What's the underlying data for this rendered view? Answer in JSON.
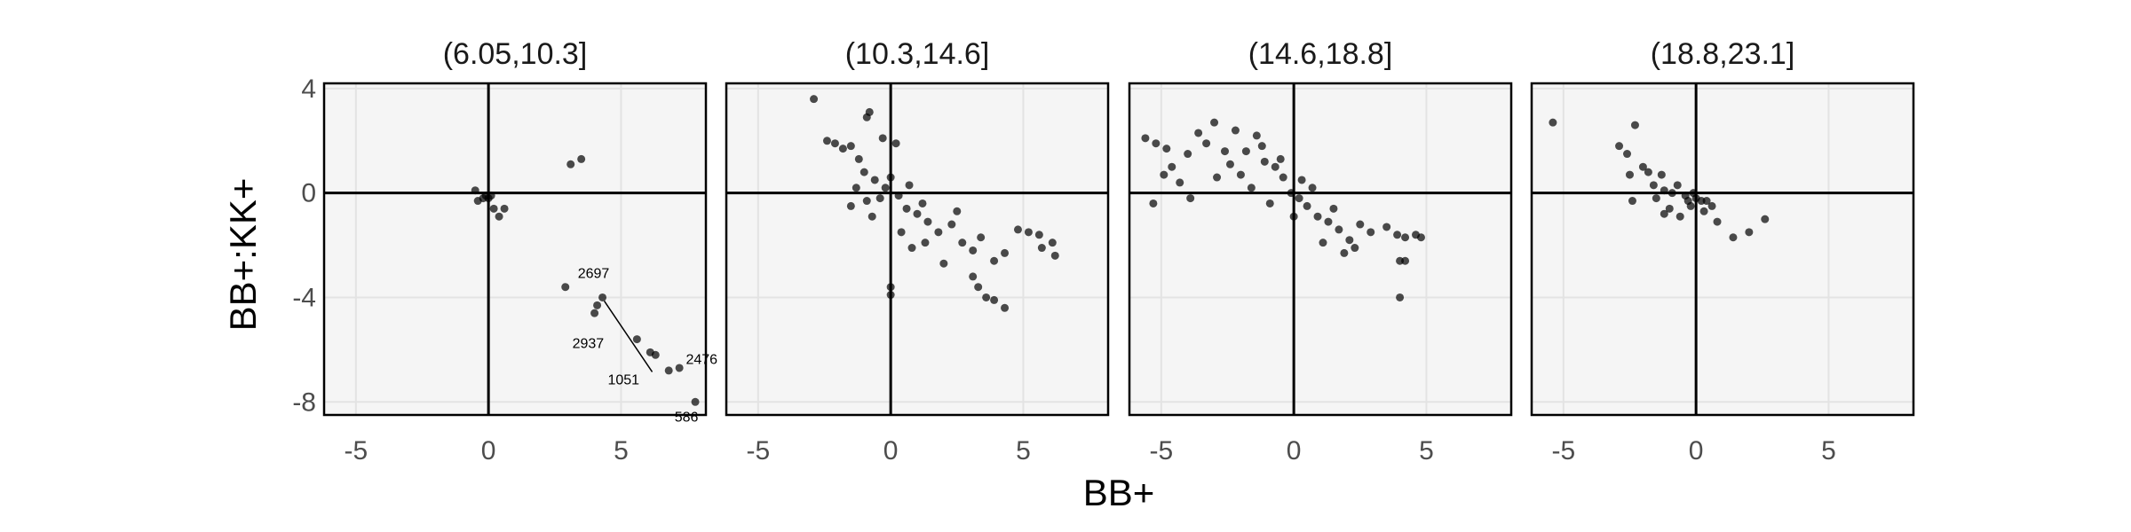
{
  "chart_data": {
    "type": "scatter",
    "xlabel": "BB+",
    "ylabel": "BB+:KK+",
    "xlim": [
      -6.2,
      8.2
    ],
    "ylim": [
      -8.5,
      4.2
    ],
    "x_ticks": [
      -5,
      0,
      5
    ],
    "x_tick_labels": [
      "-5",
      "0",
      "5"
    ],
    "y_ticks": [
      4,
      0,
      -4,
      -8
    ],
    "y_tick_labels": [
      "4",
      "0",
      "-4",
      "-8"
    ],
    "grid": true,
    "reference_lines": {
      "x": 0,
      "y": 0
    },
    "facets": [
      {
        "title": "(6.05,10.3]",
        "points": [
          [
            -0.5,
            0.1
          ],
          [
            -0.4,
            -0.3
          ],
          [
            -0.2,
            -0.2
          ],
          [
            -0.1,
            -0.1
          ],
          [
            0,
            -0.2
          ],
          [
            0.1,
            -0.1
          ],
          [
            0.2,
            -0.6
          ],
          [
            0.4,
            -0.9
          ],
          [
            0.6,
            -0.6
          ],
          [
            3.1,
            1.1
          ],
          [
            3.5,
            1.3
          ],
          [
            2.9,
            -3.6
          ],
          [
            4.1,
            -4.3
          ],
          [
            4.3,
            -4.0
          ],
          [
            4.0,
            -4.6
          ],
          [
            5.6,
            -5.6
          ],
          [
            6.1,
            -6.1
          ],
          [
            6.3,
            -6.2
          ],
          [
            6.8,
            -6.8
          ],
          [
            7.2,
            -6.7
          ],
          [
            7.8,
            -8.0
          ]
        ],
        "labels": [
          {
            "text": "2697",
            "x": 4.3,
            "y": -4.0
          },
          {
            "text": "2937",
            "x": 5.6,
            "y": -5.6
          },
          {
            "text": "2476",
            "x": 6.3,
            "y": -6.2
          },
          {
            "text": "1051",
            "x": 6.1,
            "y": -6.1
          },
          {
            "text": "586",
            "x": 7.8,
            "y": -8.0
          }
        ]
      },
      {
        "title": "(10.3,14.6]",
        "points": [
          [
            -2.9,
            3.6
          ],
          [
            -2.4,
            2.0
          ],
          [
            -2.1,
            1.9
          ],
          [
            -1.8,
            1.7
          ],
          [
            -1.5,
            1.8
          ],
          [
            -1.2,
            1.3
          ],
          [
            -0.9,
            2.9
          ],
          [
            -0.8,
            3.1
          ],
          [
            -0.3,
            2.1
          ],
          [
            0.2,
            1.9
          ],
          [
            -1.0,
            0.8
          ],
          [
            -0.6,
            0.5
          ],
          [
            -1.3,
            0.2
          ],
          [
            -0.9,
            -0.3
          ],
          [
            -1.5,
            -0.5
          ],
          [
            -0.4,
            -0.2
          ],
          [
            0.0,
            0.6
          ],
          [
            0.3,
            -0.1
          ],
          [
            0.6,
            -0.6
          ],
          [
            1.0,
            -0.8
          ],
          [
            1.4,
            -1.1
          ],
          [
            1.8,
            -1.5
          ],
          [
            2.3,
            -1.2
          ],
          [
            2.7,
            -1.9
          ],
          [
            3.1,
            -2.2
          ],
          [
            3.4,
            -1.7
          ],
          [
            3.9,
            -2.6
          ],
          [
            4.3,
            -2.3
          ],
          [
            4.8,
            -1.4
          ],
          [
            5.2,
            -1.5
          ],
          [
            5.6,
            -1.6
          ],
          [
            5.7,
            -2.1
          ],
          [
            6.1,
            -1.9
          ],
          [
            6.2,
            -2.4
          ],
          [
            3.1,
            -3.2
          ],
          [
            3.3,
            -3.6
          ],
          [
            3.6,
            -4.0
          ],
          [
            3.9,
            -4.1
          ],
          [
            4.3,
            -4.4
          ],
          [
            0.0,
            -3.6
          ],
          [
            0.0,
            -3.9
          ],
          [
            0.8,
            -2.1
          ],
          [
            1.3,
            -1.9
          ],
          [
            2.0,
            -2.7
          ],
          [
            -0.7,
            -0.9
          ],
          [
            0.4,
            -1.5
          ],
          [
            -0.2,
            0.2
          ],
          [
            0.7,
            0.3
          ],
          [
            1.2,
            -0.4
          ],
          [
            2.5,
            -0.7
          ]
        ]
      },
      {
        "title": "(14.6,18.8]",
        "points": [
          [
            -5.6,
            2.1
          ],
          [
            -5.2,
            1.9
          ],
          [
            -4.8,
            1.7
          ],
          [
            -4.6,
            1.0
          ],
          [
            -4.9,
            0.7
          ],
          [
            -5.3,
            -0.4
          ],
          [
            -4.3,
            0.4
          ],
          [
            -4.0,
            1.5
          ],
          [
            -3.6,
            2.3
          ],
          [
            -3.3,
            1.9
          ],
          [
            -3.0,
            2.7
          ],
          [
            -2.6,
            1.6
          ],
          [
            -2.2,
            2.4
          ],
          [
            -1.8,
            1.6
          ],
          [
            -1.4,
            2.2
          ],
          [
            -1.1,
            1.2
          ],
          [
            -0.7,
            1.0
          ],
          [
            -0.4,
            0.6
          ],
          [
            -0.1,
            0.0
          ],
          [
            0.2,
            -0.2
          ],
          [
            0.5,
            -0.5
          ],
          [
            0.9,
            -0.9
          ],
          [
            1.3,
            -1.1
          ],
          [
            1.7,
            -1.4
          ],
          [
            2.1,
            -1.8
          ],
          [
            2.5,
            -1.2
          ],
          [
            2.9,
            -1.5
          ],
          [
            3.5,
            -1.3
          ],
          [
            3.9,
            -1.6
          ],
          [
            4.2,
            -1.7
          ],
          [
            4.6,
            -1.6
          ],
          [
            4.8,
            -1.7
          ],
          [
            4.0,
            -2.6
          ],
          [
            4.2,
            -2.6
          ],
          [
            4.0,
            -4.0
          ],
          [
            -2.9,
            0.6
          ],
          [
            -2.4,
            1.1
          ],
          [
            -1.6,
            0.2
          ],
          [
            -0.9,
            -0.4
          ],
          [
            0.0,
            -0.9
          ],
          [
            0.7,
            0.2
          ],
          [
            1.1,
            -1.9
          ],
          [
            1.9,
            -2.3
          ],
          [
            -3.9,
            -0.2
          ],
          [
            -2.0,
            0.7
          ],
          [
            -1.2,
            1.8
          ],
          [
            -0.5,
            1.3
          ],
          [
            0.3,
            0.5
          ],
          [
            1.5,
            -0.6
          ],
          [
            2.3,
            -2.1
          ]
        ]
      },
      {
        "title": "(18.8,23.1]",
        "points": [
          [
            -5.4,
            2.7
          ],
          [
            -2.9,
            1.8
          ],
          [
            -2.6,
            1.5
          ],
          [
            -2.3,
            2.6
          ],
          [
            -2.5,
            0.7
          ],
          [
            -2.0,
            1.0
          ],
          [
            -1.8,
            0.8
          ],
          [
            -1.6,
            0.3
          ],
          [
            -1.3,
            0.7
          ],
          [
            -1.2,
            0.1
          ],
          [
            -1.5,
            -0.2
          ],
          [
            -0.9,
            0.0
          ],
          [
            -0.7,
            0.3
          ],
          [
            -0.4,
            -0.1
          ],
          [
            -0.3,
            -0.3
          ],
          [
            -0.1,
            0.0
          ],
          [
            0.0,
            -0.2
          ],
          [
            0.2,
            -0.3
          ],
          [
            0.4,
            -0.3
          ],
          [
            0.6,
            -0.5
          ],
          [
            -1.0,
            -0.6
          ],
          [
            -1.2,
            -0.8
          ],
          [
            -2.4,
            -0.3
          ],
          [
            0.8,
            -1.1
          ],
          [
            1.4,
            -1.7
          ],
          [
            2.0,
            -1.5
          ],
          [
            2.6,
            -1.0
          ],
          [
            -0.6,
            -0.9
          ],
          [
            0.3,
            -0.7
          ],
          [
            -0.2,
            -0.5
          ]
        ]
      }
    ]
  }
}
